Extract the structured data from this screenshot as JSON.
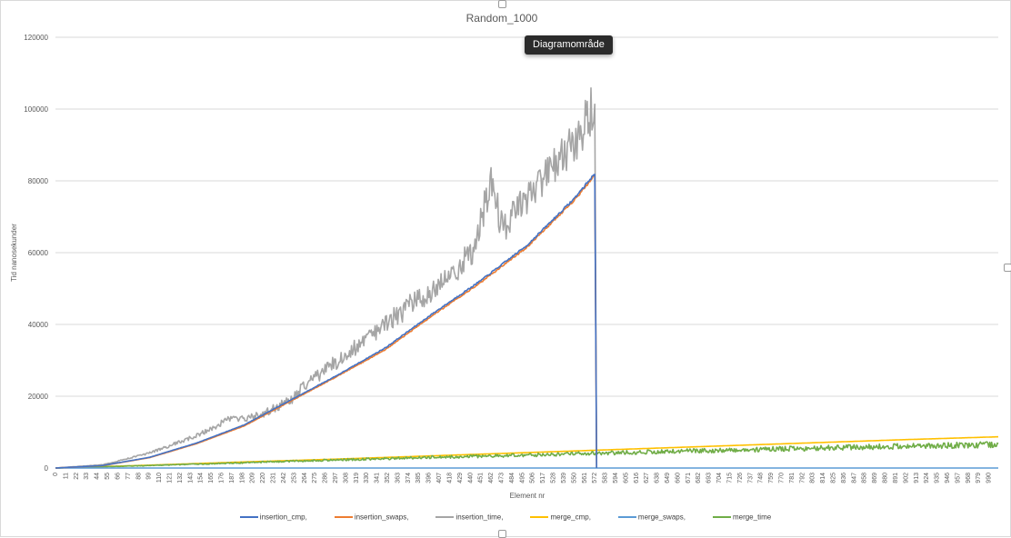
{
  "tooltip": "Diagramområde",
  "chart_data": {
    "type": "line",
    "title": "Random_1000",
    "xlabel": "Element nr",
    "ylabel": "Tid nanosekunder",
    "ylim": [
      0,
      120000
    ],
    "yticks": [
      0,
      20000,
      40000,
      60000,
      80000,
      100000,
      120000
    ],
    "xlim": [
      0,
      1000
    ],
    "xtick_step": 11,
    "xtick_labels": [
      "0",
      "11",
      "22",
      "33",
      "44",
      "55",
      "66",
      "77",
      "88",
      "99",
      "110",
      "121",
      "132",
      "143",
      "154",
      "165",
      "176",
      "187",
      "198",
      "209",
      "220",
      "231",
      "242",
      "253",
      "264",
      "275",
      "286",
      "297",
      "308",
      "319",
      "330",
      "341",
      "352",
      "363",
      "374",
      "385",
      "396",
      "407",
      "418",
      "429",
      "440",
      "451",
      "462",
      "473",
      "484",
      "495",
      "506",
      "517",
      "528",
      "539",
      "550",
      "561",
      "572",
      "583",
      "594",
      "605",
      "616",
      "627",
      "638",
      "649",
      "660",
      "671",
      "682",
      "693",
      "704",
      "715",
      "726",
      "737",
      "748",
      "759",
      "770",
      "781",
      "792",
      "803",
      "814",
      "825",
      "836",
      "847",
      "858",
      "869",
      "880",
      "891",
      "902",
      "913",
      "924",
      "935",
      "946",
      "957",
      "968",
      "979",
      "990"
    ],
    "grid": true,
    "legend_position": "bottom",
    "series": [
      {
        "name": "insertion_cmp,",
        "color": "#4472c4",
        "x": [
          0,
          50,
          100,
          150,
          200,
          250,
          300,
          350,
          400,
          450,
          500,
          550,
          572,
          574
        ],
        "values": [
          0,
          700,
          3000,
          7000,
          12000,
          19000,
          26000,
          33500,
          43000,
          52000,
          62000,
          75000,
          82000,
          0
        ]
      },
      {
        "name": "insertion_swaps,",
        "color": "#ed7d31",
        "x": [
          0,
          50,
          100,
          150,
          200,
          250,
          300,
          350,
          400,
          450,
          500,
          550,
          572,
          574
        ],
        "values": [
          0,
          650,
          2900,
          6800,
          11700,
          18700,
          25700,
          33000,
          42500,
          51500,
          61500,
          74500,
          81500,
          0
        ]
      },
      {
        "name": "insertion_time,",
        "color": "#a5a5a5",
        "x": [
          0,
          50,
          100,
          150,
          187,
          200,
          220,
          250,
          264,
          300,
          350,
          400,
          440,
          462,
          473,
          500,
          550,
          572,
          574
        ],
        "values": [
          0,
          900,
          4200,
          9000,
          14000,
          13500,
          15000,
          19000,
          23000,
          30000,
          40000,
          50000,
          59000,
          80000,
          67000,
          74000,
          90000,
          101000,
          0
        ]
      },
      {
        "name": "merge_cmp,",
        "color": "#ffc000",
        "x": [
          0,
          100,
          200,
          300,
          400,
          500,
          600,
          700,
          800,
          900,
          1000
        ],
        "values": [
          0,
          800,
          1700,
          2500,
          3400,
          4300,
          5200,
          6100,
          7000,
          7900,
          8700
        ]
      },
      {
        "name": "merge_swaps,",
        "color": "#5b9bd5",
        "x": [
          0,
          1000
        ],
        "values": [
          0,
          0
        ]
      },
      {
        "name": "merge_time",
        "color": "#70ad47",
        "x": [
          0,
          100,
          200,
          300,
          400,
          500,
          600,
          700,
          800,
          900,
          1000
        ],
        "values": [
          0,
          700,
          1500,
          2300,
          3000,
          3600,
          4300,
          4900,
          5500,
          6100,
          6500
        ]
      }
    ]
  }
}
